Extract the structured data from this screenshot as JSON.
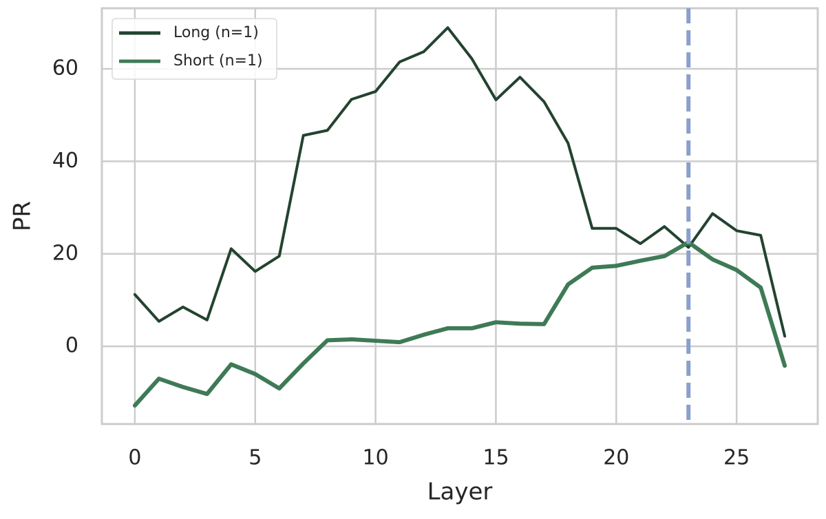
{
  "chart_data": {
    "type": "line",
    "x_label": "Layer",
    "y_label": "PR",
    "x": [
      0,
      1,
      2,
      3,
      4,
      5,
      6,
      7,
      8,
      9,
      10,
      11,
      12,
      13,
      14,
      15,
      16,
      17,
      18,
      19,
      20,
      21,
      22,
      23,
      24,
      25,
      26,
      27
    ],
    "series": [
      {
        "name": "Long (n=1)",
        "color": "#23432f",
        "width": 4,
        "values": [
          11.2,
          5.4,
          8.5,
          5.7,
          21.1,
          16.2,
          19.5,
          45.6,
          46.7,
          53.4,
          55.1,
          61.5,
          63.7,
          68.9,
          62.2,
          53.3,
          58.2,
          52.9,
          43.9,
          25.5,
          25.5,
          22.2,
          25.9,
          21.4,
          28.7,
          25.0,
          24.0,
          2.2
        ]
      },
      {
        "name": "Short (n=1)",
        "color": "#3e7a56",
        "width": 6,
        "values": [
          -12.8,
          -7.0,
          -8.8,
          -10.3,
          -3.9,
          -6.0,
          -9.1,
          -3.7,
          1.3,
          1.5,
          1.2,
          0.9,
          2.5,
          3.9,
          3.9,
          5.2,
          4.9,
          4.8,
          13.4,
          17.0,
          17.4,
          18.5,
          19.5,
          22.5,
          18.8,
          16.5,
          12.7,
          -4.2
        ]
      }
    ],
    "vline": {
      "x": 23,
      "color": "#8aa0cc"
    },
    "xlim": [
      -1.37,
      28.37
    ],
    "ylim": [
      -16.8,
      73.1
    ],
    "xticks": [
      0,
      5,
      10,
      15,
      20,
      25
    ],
    "yticks": [
      0,
      20,
      40,
      60
    ],
    "grid": true,
    "legend": "upper left"
  }
}
